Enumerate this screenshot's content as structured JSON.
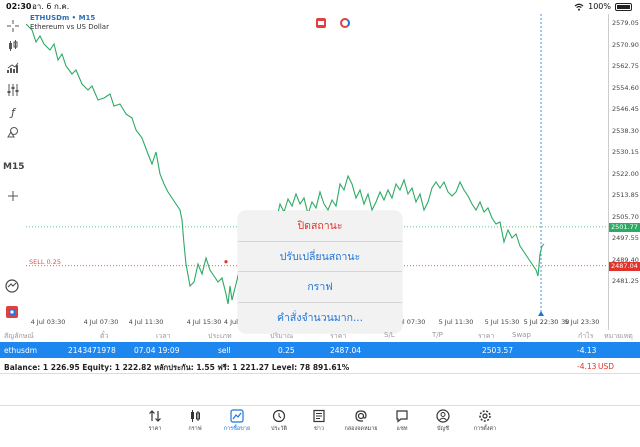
{
  "status_bar": {
    "time": "02:30",
    "date": "อา. 6 ก.ค.",
    "battery": "100%"
  },
  "chart": {
    "symbol": "ETHUSDm • M15",
    "description": "Ethereum vs US Dollar",
    "timeframe": "M15",
    "sell_label": "SELL 0.25",
    "price_ticks": [
      "2579.05",
      "2570.90",
      "2562.75",
      "2554.60",
      "2546.45",
      "2538.30",
      "2530.15",
      "2522.00",
      "2513.85",
      "2505.70",
      "2497.55",
      "2489.40",
      "2481.25"
    ],
    "current_price": "2501.77",
    "open_price": "2487.04",
    "time_ticks": [
      "4 Jul 03:30",
      "4 Jul 07:30",
      "4 Jul 11:30",
      "4 Jul 15:30",
      "5 Jul 11:30",
      "5 Jul 15:30",
      "5 Jul 19:30",
      "5 Jul 23:30"
    ],
    "time_hidden_tick": "4 Jul 1",
    "time_hidden_tick2": "5 Jul 07:30",
    "time_badge": "5 Jul 22:30",
    "colors": {
      "line": "#2bab63",
      "price_badge": "#2bab63",
      "open_badge": "#e0332b",
      "sell": "#d9534f"
    }
  },
  "action_sheet": {
    "items": [
      {
        "label": "ปิดสถานะ"
      },
      {
        "label": "ปรับเปลี่ยนสถานะ"
      },
      {
        "label": "กราฟ"
      },
      {
        "label": "คำสั่งจำนวนมาก..."
      }
    ]
  },
  "trades": {
    "headers": [
      "สัญลักษณ์",
      "ตั๋ว",
      "เวลา",
      "ประเภท",
      "ปริมาณ",
      "ราคา",
      "S/L",
      "T/P",
      "ราคา",
      "Swap",
      "กำไร",
      "หมายเหตุ"
    ],
    "row": {
      "symbol": "ethusdm",
      "ticket": "2143471978",
      "time": "07.04 19:09",
      "type": "sell",
      "volume": "0.25",
      "open_price": "2487.04",
      "price": "2503.57",
      "profit": "-4.13"
    },
    "balance_text": "Balance: 1 226.95 Equity: 1 222.82 หลักประกัน: 1.55 ฟรี: 1 221.27 Level: 78 891.61%",
    "balance_profit": "-4.13",
    "balance_currency": "USD"
  },
  "tabs": [
    {
      "label": "ราคา",
      "icon": "arrows-updown-icon"
    },
    {
      "label": "กราฟ",
      "icon": "candles-icon"
    },
    {
      "label": "การซื้อขาย",
      "icon": "trade-chart-icon",
      "active": true
    },
    {
      "label": "ประวัติ",
      "icon": "history-icon"
    },
    {
      "label": "ข่าว",
      "icon": "news-icon"
    },
    {
      "label": "กล่องจดหมาย",
      "icon": "at-icon"
    },
    {
      "label": "แชท",
      "icon": "chat-icon"
    },
    {
      "label": "บัญชี",
      "icon": "account-icon"
    },
    {
      "label": "การตั้งค่า",
      "icon": "settings-icon"
    }
  ]
}
